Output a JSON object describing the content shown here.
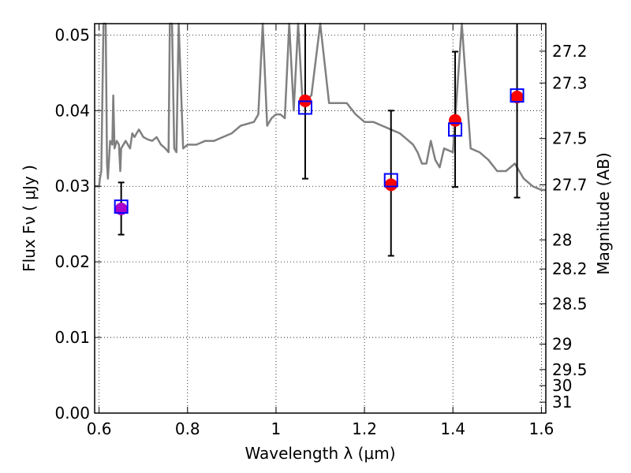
{
  "chart_data": {
    "type": "scatter",
    "xlabel": "Wavelength  λ (μm)",
    "ylabel": "Flux  Fν ( μJy )",
    "ylabel_right": "Magnitude (AB)",
    "xlim": [
      0.59,
      1.61
    ],
    "ylim": [
      0.0,
      0.0515
    ],
    "grid": true,
    "x_ticks": [
      0.6,
      0.8,
      1.0,
      1.2,
      1.4,
      1.6
    ],
    "x_tick_labels": [
      "0.6",
      "0.8",
      "1",
      "1.2",
      "1.4",
      "1.6"
    ],
    "y_ticks": [
      0.0,
      0.01,
      0.02,
      0.03,
      0.04,
      0.05
    ],
    "y_tick_labels": [
      "0.00",
      "0.01",
      "0.02",
      "0.03",
      "0.04",
      "0.05"
    ],
    "right_ticks_mag": [
      27.2,
      27.3,
      27.5,
      27.7,
      28,
      28.2,
      28.5,
      29,
      29.5,
      30,
      31
    ],
    "right_tick_labels": [
      "27.2",
      "27.3",
      "27.5",
      "27.7",
      "28",
      "28.2",
      "28.5",
      "29",
      "29.5",
      "30",
      "31"
    ],
    "series": [
      {
        "kind": "model_spectrum_line",
        "color": "#808080",
        "x": [
          0.59,
          0.6,
          0.602,
          0.605,
          0.61,
          0.615,
          0.618,
          0.62,
          0.625,
          0.63,
          0.632,
          0.635,
          0.64,
          0.645,
          0.648,
          0.65,
          0.66,
          0.67,
          0.675,
          0.68,
          0.69,
          0.7,
          0.71,
          0.72,
          0.73,
          0.74,
          0.75,
          0.757,
          0.76,
          0.765,
          0.77,
          0.775,
          0.78,
          0.79,
          0.8,
          0.82,
          0.84,
          0.86,
          0.88,
          0.9,
          0.92,
          0.95,
          0.96,
          0.97,
          0.98,
          0.99,
          1.0,
          1.01,
          1.02,
          1.03,
          1.04,
          1.05,
          1.06,
          1.08,
          1.1,
          1.12,
          1.14,
          1.16,
          1.18,
          1.2,
          1.22,
          1.24,
          1.26,
          1.28,
          1.3,
          1.31,
          1.32,
          1.33,
          1.34,
          1.35,
          1.36,
          1.37,
          1.38,
          1.4,
          1.42,
          1.44,
          1.46,
          1.48,
          1.5,
          1.52,
          1.54,
          1.56,
          1.58,
          1.6,
          1.61
        ],
        "y": [
          0.03,
          0.03,
          0.031,
          0.032,
          0.0515,
          0.0515,
          0.033,
          0.031,
          0.036,
          0.0355,
          0.042,
          0.035,
          0.036,
          0.0355,
          0.032,
          0.035,
          0.036,
          0.035,
          0.037,
          0.0365,
          0.0375,
          0.0365,
          0.0362,
          0.036,
          0.0365,
          0.0355,
          0.035,
          0.0345,
          0.0515,
          0.0515,
          0.035,
          0.0345,
          0.0515,
          0.035,
          0.0355,
          0.0355,
          0.036,
          0.036,
          0.0365,
          0.037,
          0.038,
          0.0385,
          0.0395,
          0.0515,
          0.038,
          0.039,
          0.0395,
          0.0395,
          0.039,
          0.0515,
          0.04,
          0.0515,
          0.041,
          0.042,
          0.0515,
          0.041,
          0.041,
          0.041,
          0.0395,
          0.0385,
          0.0385,
          0.038,
          0.0375,
          0.037,
          0.036,
          0.0355,
          0.0345,
          0.033,
          0.033,
          0.036,
          0.0335,
          0.0325,
          0.035,
          0.0345,
          0.0515,
          0.035,
          0.0345,
          0.0335,
          0.032,
          0.032,
          0.033,
          0.031,
          0.03,
          0.0295,
          0.0295
        ]
      },
      {
        "kind": "observed_points",
        "marker": "circle",
        "color": "#ff0000",
        "x": [
          0.65,
          1.066,
          1.26,
          1.405,
          1.545
        ],
        "y": [
          0.027,
          0.0413,
          0.0302,
          0.0387,
          0.0418
        ],
        "yerr_low": [
          0.0236,
          0.031,
          0.0208,
          0.0299,
          0.0285
        ],
        "yerr_high": [
          0.0305,
          0.0515,
          0.04,
          0.0478,
          0.0515
        ],
        "colors": [
          "#aa00cc",
          "#ff0000",
          "#ff0000",
          "#ff0000",
          "#ff0000"
        ]
      },
      {
        "kind": "model_photometry",
        "marker": "square",
        "color": "#0000ff",
        "x": [
          0.65,
          1.066,
          1.26,
          1.405,
          1.545
        ],
        "y": [
          0.0273,
          0.0404,
          0.0308,
          0.0375,
          0.042
        ]
      }
    ]
  }
}
